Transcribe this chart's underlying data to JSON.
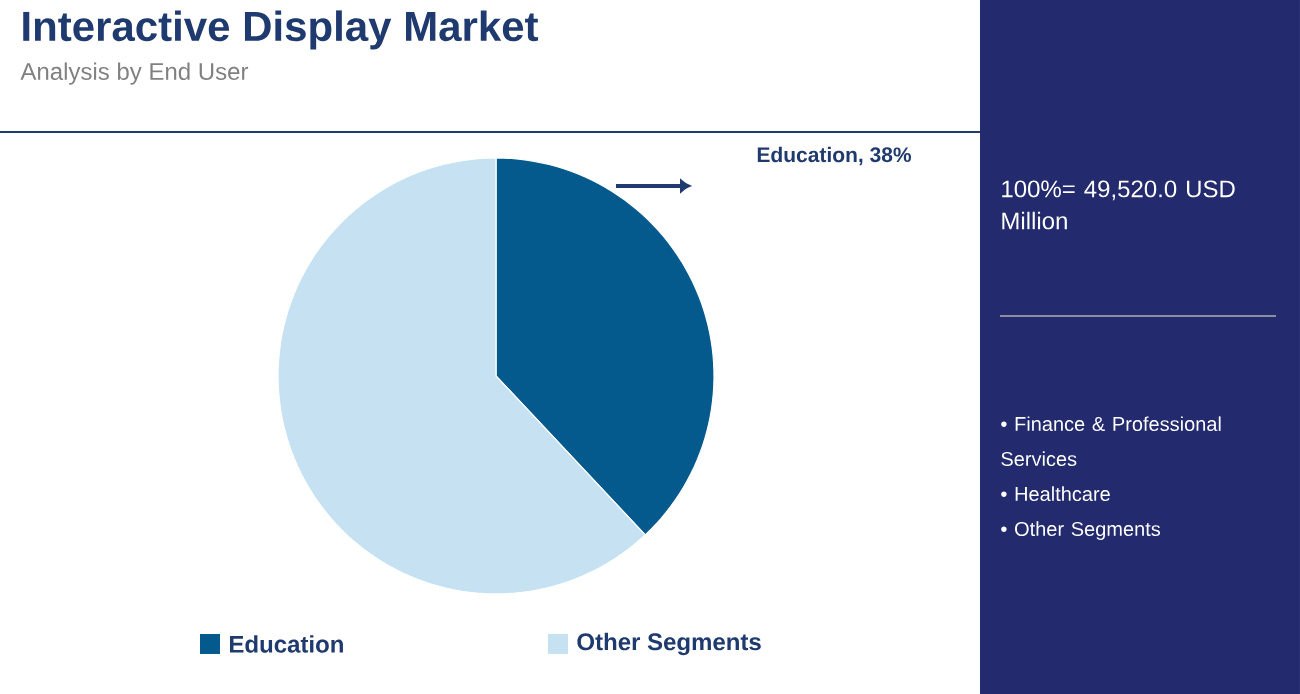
{
  "chart_data": {
    "type": "pie",
    "title": "Interactive Display Market",
    "subtitle": "Analysis by End User",
    "categories": [
      "Education",
      "Other Segments"
    ],
    "values": [
      38,
      62
    ],
    "colors": [
      "#045a8d",
      "#c6e2f2"
    ],
    "value_labels": [
      "Education, 38%",
      null
    ],
    "legend": "bottom",
    "annotations": [
      "100%= 49,520.0 USD Million",
      "• Finance & Professional Services",
      "• Healthcare",
      "• Other Segments"
    ]
  }
}
